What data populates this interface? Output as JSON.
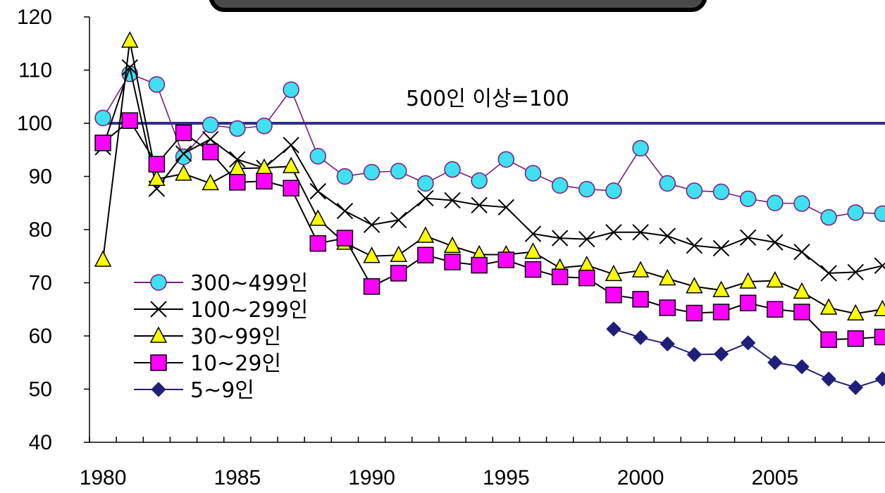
{
  "chart_data": {
    "type": "line",
    "title": "",
    "xlabel": "",
    "ylabel": "",
    "xlim": [
      1980,
      2009
    ],
    "ylim": [
      40,
      120
    ],
    "x_ticks": [
      "1980",
      "1985",
      "1990",
      "1995",
      "2000",
      "2005"
    ],
    "y_ticks": [
      "40",
      "50",
      "60",
      "70",
      "80",
      "90",
      "100",
      "110",
      "120"
    ],
    "x": [
      1980,
      1981,
      1982,
      1983,
      1984,
      1985,
      1986,
      1987,
      1988,
      1989,
      1990,
      1991,
      1992,
      1993,
      1994,
      1995,
      1996,
      1997,
      1998,
      1999,
      2000,
      2001,
      2002,
      2003,
      2004,
      2005,
      2006,
      2007,
      2008,
      2009
    ],
    "reference_line": {
      "value": 100,
      "label": "500인 이상=100",
      "color": "#2e2e8a"
    },
    "legend_position": "left",
    "series": [
      {
        "name": "300~499인",
        "marker": "circle",
        "marker_color": "#3fe0f0",
        "line_color": "#7a1a7a",
        "values": [
          101,
          109.3,
          107.3,
          93.7,
          99.7,
          99,
          99.5,
          106.3,
          93.8,
          90,
          90.8,
          91,
          88.7,
          91.3,
          89.2,
          93.2,
          90.6,
          88.3,
          87.6,
          87.3,
          95.3,
          88.7,
          87.3,
          87.1,
          85.8,
          85,
          84.9,
          82.3,
          83.2,
          83
        ]
      },
      {
        "name": "100~299인",
        "marker": "x",
        "marker_color": "#000000",
        "line_color": "#000000",
        "values": [
          95.5,
          110.5,
          87.7,
          94.3,
          97,
          93.2,
          91.6,
          95.9,
          87.2,
          83.5,
          80.9,
          81.8,
          85.9,
          85.5,
          84.6,
          84.2,
          79.2,
          78.4,
          78.2,
          79.5,
          79.5,
          78.8,
          77,
          76.5,
          78.5,
          77.6,
          75.8,
          71.8,
          72,
          73.2
        ]
      },
      {
        "name": "30~99인",
        "marker": "triangle",
        "marker_color": "#ffff00",
        "line_color": "#000000",
        "values": [
          74.3,
          115.5,
          89.5,
          90.5,
          88.7,
          91.5,
          91.6,
          91.9,
          82,
          77.5,
          75,
          75.2,
          78.8,
          76.9,
          75.3,
          75.3,
          75.8,
          72.8,
          73.3,
          71.6,
          72.3,
          70.8,
          69.3,
          68.6,
          70.2,
          70.4,
          68.3,
          65.3,
          64.2,
          65
        ]
      },
      {
        "name": "10~29인",
        "marker": "square",
        "marker_color": "#ff00ff",
        "line_color": "#000000",
        "values": [
          96.3,
          100.5,
          92.3,
          98.2,
          94.6,
          88.9,
          89.1,
          87.8,
          77.4,
          78.4,
          69.3,
          71.8,
          75.2,
          73.9,
          73.3,
          74.3,
          72.5,
          71.1,
          70.9,
          67.7,
          66.9,
          65.3,
          64.3,
          64.5,
          66.2,
          65,
          64.5,
          59.3,
          59.5,
          59.8
        ]
      },
      {
        "name": "5~9인",
        "marker": "diamond",
        "marker_color": "#1f1f7a",
        "line_color": "#1f1f7a",
        "values": [
          null,
          null,
          null,
          null,
          null,
          null,
          null,
          null,
          null,
          null,
          null,
          null,
          null,
          null,
          null,
          null,
          null,
          null,
          null,
          61.3,
          59.7,
          58.5,
          56.5,
          56.6,
          58.7,
          55,
          54.2,
          51.9,
          50.3,
          51.9
        ]
      }
    ]
  }
}
